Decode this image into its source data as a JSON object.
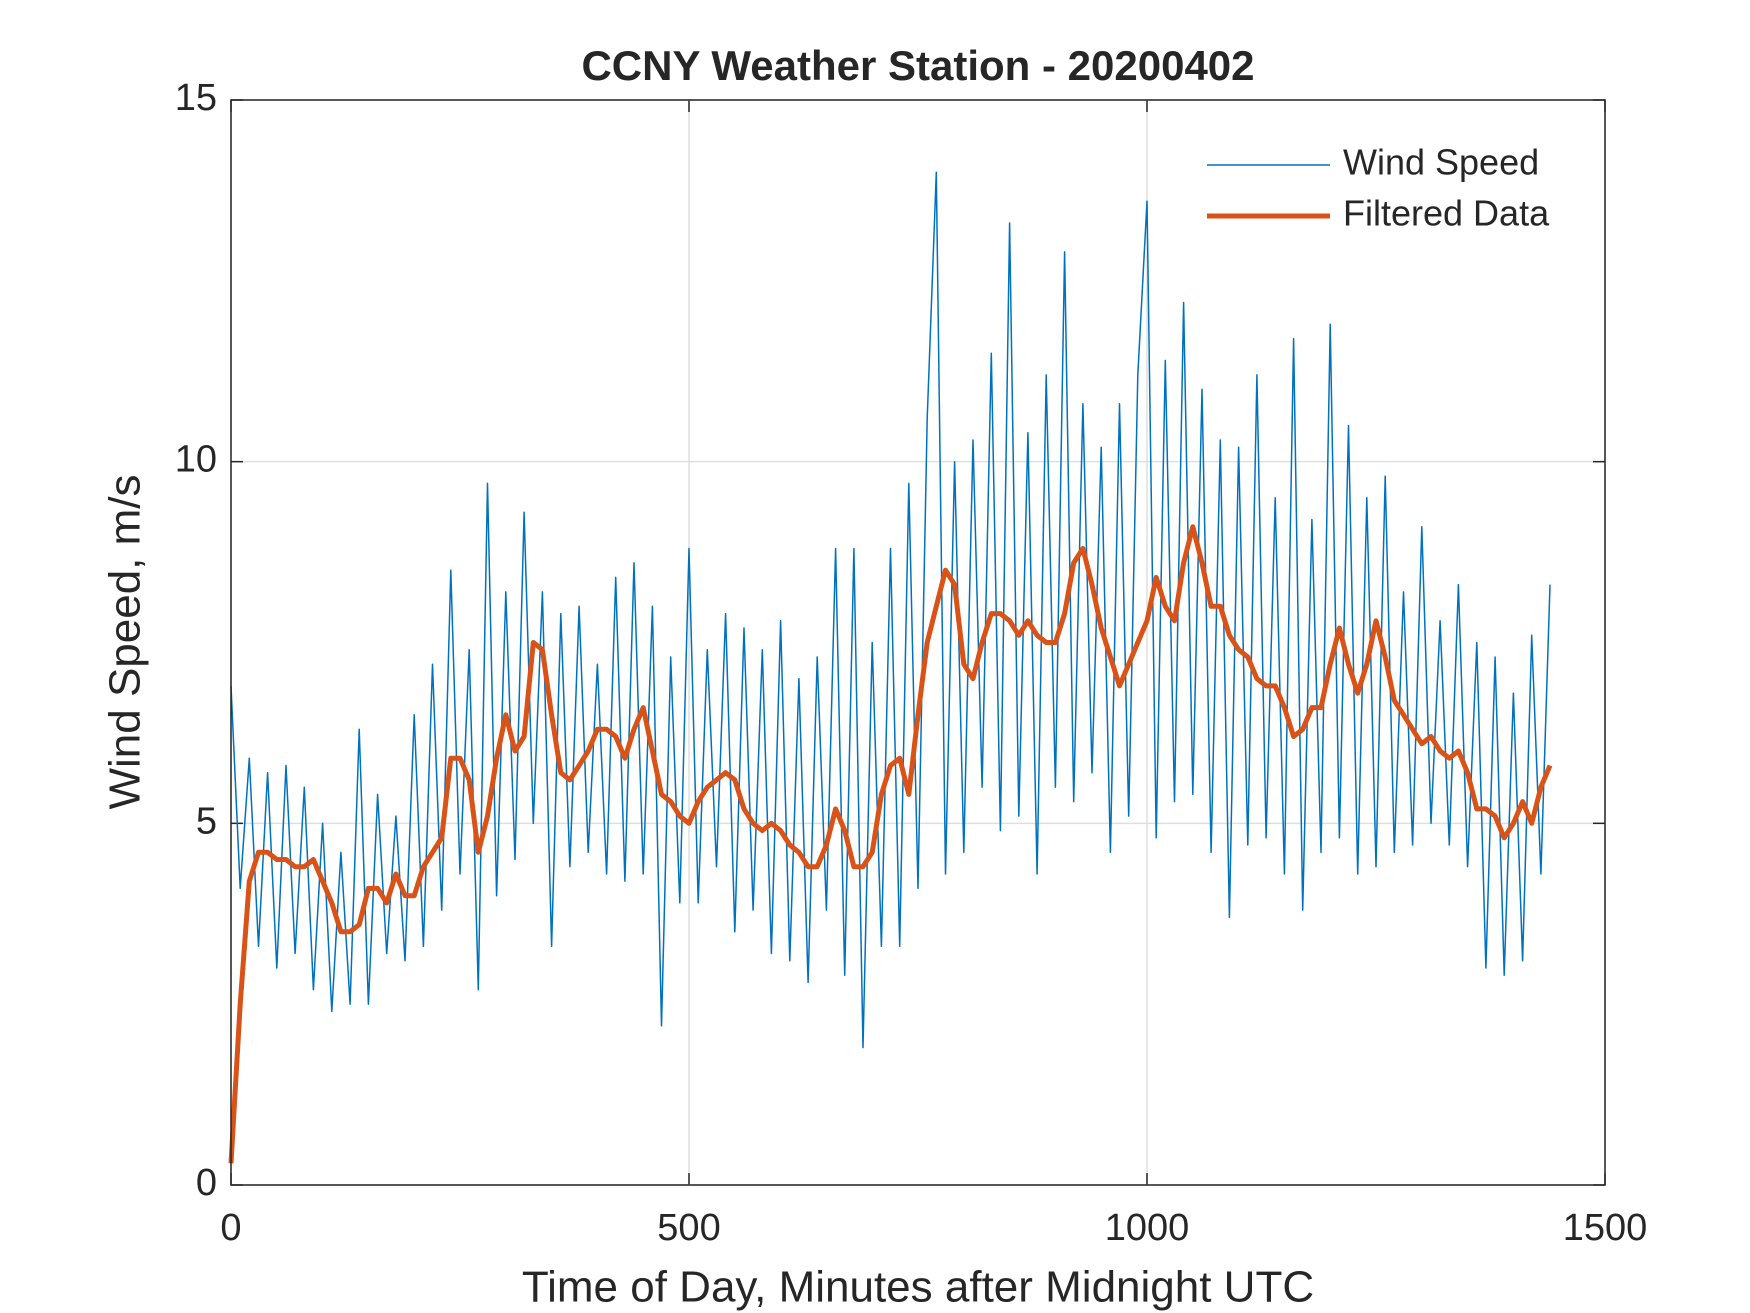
{
  "chart_data": {
    "type": "line",
    "title": "CCNY Weather Station - 20200402",
    "x_label": "Time of Day, Minutes after Midnight UTC",
    "y_label": "Wind Speed, m/s",
    "x": [
      0,
      10,
      20,
      30,
      40,
      50,
      60,
      70,
      80,
      90,
      100,
      110,
      120,
      130,
      140,
      150,
      160,
      170,
      180,
      190,
      200,
      210,
      220,
      230,
      240,
      250,
      260,
      270,
      280,
      290,
      300,
      310,
      320,
      330,
      340,
      350,
      360,
      370,
      380,
      390,
      400,
      410,
      420,
      430,
      440,
      450,
      460,
      470,
      480,
      490,
      500,
      510,
      520,
      530,
      540,
      550,
      560,
      570,
      580,
      590,
      600,
      610,
      620,
      630,
      640,
      650,
      660,
      670,
      680,
      690,
      700,
      710,
      720,
      730,
      740,
      750,
      760,
      770,
      780,
      790,
      800,
      810,
      820,
      830,
      840,
      850,
      860,
      870,
      880,
      890,
      900,
      910,
      920,
      930,
      940,
      950,
      960,
      970,
      980,
      990,
      1000,
      1010,
      1020,
      1030,
      1040,
      1050,
      1060,
      1070,
      1080,
      1090,
      1100,
      1110,
      1120,
      1130,
      1140,
      1150,
      1160,
      1170,
      1180,
      1190,
      1200,
      1210,
      1220,
      1230,
      1240,
      1250,
      1260,
      1270,
      1280,
      1290,
      1300,
      1310,
      1320,
      1330,
      1340,
      1350,
      1360,
      1370,
      1380,
      1390,
      1400,
      1410,
      1420,
      1430,
      1440
    ],
    "series": [
      {
        "name": "Wind Speed",
        "color": "#0072bd",
        "width": 1.5,
        "values": [
          6.9,
          4.1,
          5.9,
          3.3,
          5.7,
          3.0,
          5.8,
          3.2,
          5.5,
          2.7,
          5.0,
          2.4,
          4.6,
          2.5,
          6.3,
          2.5,
          5.4,
          3.2,
          5.1,
          3.1,
          6.5,
          3.3,
          7.2,
          3.8,
          8.5,
          4.3,
          7.4,
          2.7,
          9.7,
          4.0,
          8.2,
          4.5,
          9.3,
          5.0,
          8.2,
          3.3,
          7.9,
          4.4,
          8.0,
          4.6,
          7.2,
          4.3,
          8.4,
          4.2,
          8.6,
          4.3,
          8.0,
          2.2,
          7.3,
          3.9,
          8.8,
          3.9,
          7.4,
          4.4,
          7.9,
          3.5,
          7.7,
          3.8,
          7.4,
          3.2,
          7.8,
          3.1,
          7.0,
          2.8,
          7.3,
          3.8,
          8.8,
          2.9,
          8.8,
          1.9,
          7.5,
          3.3,
          8.8,
          3.3,
          9.7,
          4.1,
          10.6,
          14.0,
          4.3,
          10.0,
          4.6,
          10.3,
          5.5,
          11.5,
          4.9,
          13.3,
          5.1,
          10.4,
          4.3,
          11.2,
          5.5,
          12.9,
          5.3,
          10.8,
          5.7,
          10.2,
          4.6,
          10.8,
          5.1,
          11.2,
          13.6,
          4.8,
          11.4,
          5.3,
          12.2,
          5.4,
          11.0,
          4.6,
          10.3,
          3.7,
          10.2,
          4.7,
          11.2,
          4.8,
          9.5,
          4.3,
          11.7,
          3.8,
          9.2,
          4.6,
          11.9,
          4.8,
          10.5,
          4.3,
          9.5,
          4.4,
          9.8,
          4.6,
          8.2,
          4.7,
          9.1,
          5.0,
          7.8,
          4.7,
          8.3,
          4.4,
          7.5,
          3.0,
          7.3,
          2.9,
          6.8,
          3.1,
          7.6,
          4.3,
          8.3
        ]
      },
      {
        "name": "Filtered Data",
        "color": "#d95319",
        "width": 5,
        "values": [
          0.3,
          2.5,
          4.2,
          4.6,
          4.6,
          4.5,
          4.5,
          4.4,
          4.4,
          4.5,
          4.2,
          3.9,
          3.5,
          3.5,
          3.6,
          4.1,
          4.1,
          3.9,
          4.3,
          4.0,
          4.0,
          4.4,
          4.6,
          4.8,
          5.9,
          5.9,
          5.6,
          4.6,
          5.1,
          5.9,
          6.5,
          6.0,
          6.2,
          7.5,
          7.4,
          6.5,
          5.7,
          5.6,
          5.8,
          6.0,
          6.3,
          6.3,
          6.2,
          5.9,
          6.3,
          6.6,
          6.0,
          5.4,
          5.3,
          5.1,
          5.0,
          5.3,
          5.5,
          5.6,
          5.7,
          5.6,
          5.2,
          5.0,
          4.9,
          5.0,
          4.9,
          4.7,
          4.6,
          4.4,
          4.4,
          4.7,
          5.2,
          4.9,
          4.4,
          4.4,
          4.6,
          5.4,
          5.8,
          5.9,
          5.4,
          6.5,
          7.5,
          8.0,
          8.5,
          8.3,
          7.2,
          7.0,
          7.5,
          7.9,
          7.9,
          7.8,
          7.6,
          7.8,
          7.6,
          7.5,
          7.5,
          7.9,
          8.6,
          8.8,
          8.3,
          7.7,
          7.3,
          6.9,
          7.2,
          7.5,
          7.8,
          8.4,
          8.0,
          7.8,
          8.6,
          9.1,
          8.6,
          8.0,
          8.0,
          7.6,
          7.4,
          7.3,
          7.0,
          6.9,
          6.9,
          6.6,
          6.2,
          6.3,
          6.6,
          6.6,
          7.2,
          7.7,
          7.2,
          6.8,
          7.2,
          7.8,
          7.3,
          6.7,
          6.5,
          6.3,
          6.1,
          6.2,
          6.0,
          5.9,
          6.0,
          5.7,
          5.2,
          5.2,
          5.1,
          4.8,
          5.0,
          5.3,
          5.0,
          5.5,
          5.8
        ]
      }
    ],
    "xlim": [
      0,
      1500
    ],
    "xticks": [
      0,
      500,
      1000,
      1500
    ],
    "ylim": [
      0,
      15
    ],
    "yticks": [
      0,
      5,
      10,
      15
    ],
    "grid": true,
    "legend": "northeast"
  }
}
